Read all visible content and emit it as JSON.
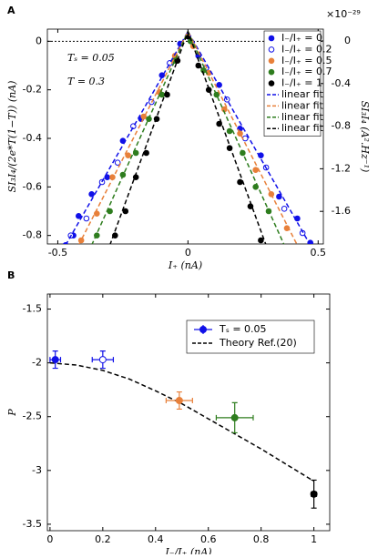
{
  "chart_data": [
    {
      "type": "scatter",
      "panel_label": "A",
      "x_label": "I₊ (nA)",
      "y_label": "SI₃I₄/(2e*T(1−T)) (nA)",
      "y2_label": "SI₃I₄ (A².Hz⁻¹)",
      "y2_exponent": "×10⁻²⁹",
      "annotations": [
        "Tₛ = 0.05",
        "T = 0.3"
      ],
      "xlim": [
        -0.54,
        0.52
      ],
      "xticks": [
        -0.5,
        0,
        0.5
      ],
      "ylim": [
        -0.835,
        0.05
      ],
      "yticks": [
        0,
        -0.2,
        -0.4,
        -0.6,
        -0.8
      ],
      "y2lim": [
        -1.906,
        0.111
      ],
      "y2ticks": [
        0,
        -0.4,
        -0.8,
        -1.2,
        -1.6
      ],
      "reference_line": 0,
      "legend": "upper right",
      "series": [
        {
          "name": "I₋/I₊ = 0",
          "color": "#1010e8",
          "kind": "points",
          "marker": "filled",
          "x": [
            -0.47,
            -0.44,
            -0.42,
            -0.37,
            -0.31,
            -0.25,
            -0.18,
            -0.1,
            -0.03,
            0.04,
            0.12,
            0.2,
            0.28,
            0.35,
            0.42,
            0.47
          ],
          "values": [
            -0.84,
            -0.8,
            -0.72,
            -0.63,
            -0.56,
            -0.41,
            -0.32,
            -0.14,
            -0.01,
            -0.06,
            -0.18,
            -0.36,
            -0.47,
            -0.64,
            -0.73,
            -0.83
          ]
        },
        {
          "name": "I₋/I₊ = 0.2",
          "color": "#1010e8",
          "kind": "points",
          "marker": "open",
          "x": [
            -0.45,
            -0.39,
            -0.33,
            -0.27,
            -0.21,
            -0.14,
            -0.07,
            0.0,
            0.07,
            0.15,
            0.22,
            0.3,
            0.37,
            0.44
          ],
          "values": [
            -0.8,
            -0.73,
            -0.58,
            -0.5,
            -0.35,
            -0.25,
            -0.09,
            0.02,
            -0.11,
            -0.24,
            -0.4,
            -0.52,
            -0.69,
            -0.79
          ]
        },
        {
          "name": "I₋/I₊ = 0.5",
          "color": "#e8803a",
          "kind": "points",
          "marker": "filled",
          "x": [
            -0.41,
            -0.35,
            -0.29,
            -0.23,
            -0.17,
            -0.11,
            -0.05,
            0.02,
            0.08,
            0.14,
            0.2,
            0.26,
            0.32,
            0.38
          ],
          "values": [
            -0.82,
            -0.71,
            -0.56,
            -0.47,
            -0.31,
            -0.21,
            -0.06,
            -0.02,
            -0.13,
            -0.28,
            -0.38,
            -0.53,
            -0.63,
            -0.77
          ]
        },
        {
          "name": "I₋/I₊ = 0.7",
          "color": "#2e7d1e",
          "kind": "points",
          "marker": "filled",
          "x": [
            -0.35,
            -0.3,
            -0.25,
            -0.2,
            -0.15,
            -0.1,
            -0.05,
            0.01,
            0.06,
            0.11,
            0.16,
            0.21,
            0.26,
            0.31
          ],
          "values": [
            -0.8,
            -0.7,
            -0.55,
            -0.46,
            -0.32,
            -0.22,
            -0.08,
            0.0,
            -0.12,
            -0.22,
            -0.37,
            -0.46,
            -0.6,
            -0.7
          ]
        },
        {
          "name": "I₋/I₊ = 1",
          "color": "#000000",
          "kind": "points",
          "marker": "filled",
          "x": [
            -0.28,
            -0.24,
            -0.2,
            -0.16,
            -0.12,
            -0.08,
            -0.04,
            0.0,
            0.04,
            0.08,
            0.12,
            0.16,
            0.2,
            0.24,
            0.28
          ],
          "values": [
            -0.8,
            -0.7,
            -0.56,
            -0.46,
            -0.32,
            -0.22,
            -0.08,
            0.02,
            -0.1,
            -0.2,
            -0.34,
            -0.44,
            -0.58,
            -0.68,
            -0.82
          ]
        },
        {
          "name": "linear fit",
          "color": "#1010e8",
          "kind": "line",
          "x": [
            -0.47,
            0,
            0.47
          ],
          "values": [
            -0.84,
            0.04,
            -0.84
          ]
        },
        {
          "name": "linear fit",
          "color": "#e8803a",
          "kind": "line",
          "x": [
            -0.42,
            0,
            0.42
          ],
          "values": [
            -0.84,
            0.04,
            -0.84
          ]
        },
        {
          "name": "linear fit",
          "color": "#2e7d1e",
          "kind": "line",
          "x": [
            -0.37,
            0,
            0.37
          ],
          "values": [
            -0.84,
            0.04,
            -0.84
          ]
        },
        {
          "name": "linear fit",
          "color": "#000000",
          "kind": "line",
          "x": [
            -0.3,
            0,
            0.3
          ],
          "values": [
            -0.84,
            0.04,
            -0.84
          ]
        }
      ]
    },
    {
      "type": "errorbar",
      "panel_label": "B",
      "x_label": "I₋/I₊ (nA)",
      "y_label": "P",
      "xlim": [
        -0.01,
        1.06
      ],
      "xticks": [
        0,
        0.2,
        0.4,
        0.6,
        0.8,
        1
      ],
      "ylim": [
        -3.56,
        -1.36
      ],
      "yticks": [
        -1.5,
        -2,
        -2.5,
        -3,
        -3.5
      ],
      "legend": "upper right",
      "series": [
        {
          "name": "Tₛ = 0.05",
          "kind": "points",
          "x": [
            0.02,
            0.2,
            0.49,
            0.7,
            1
          ],
          "values": [
            -1.97,
            -1.97,
            -2.35,
            -2.51,
            -3.22
          ],
          "xerr": [
            0.02,
            0.04,
            0.05,
            0.07,
            0.01
          ],
          "yerr": [
            0.08,
            0.08,
            0.08,
            0.14,
            0.13
          ],
          "colors": [
            "#1010e8",
            "#1010e8",
            "#e8803a",
            "#2e7d1e",
            "#000000"
          ],
          "markers": [
            "filled",
            "open",
            "filled",
            "filled",
            "filled"
          ]
        },
        {
          "name": "Theory Ref.(20)",
          "kind": "line",
          "color": "#000000",
          "x": [
            0,
            0.1,
            0.2,
            0.3,
            0.4,
            0.5,
            0.6,
            0.7,
            0.8,
            0.9,
            1
          ],
          "values": [
            -2.0,
            -2.02,
            -2.07,
            -2.15,
            -2.26,
            -2.38,
            -2.52,
            -2.66,
            -2.8,
            -2.95,
            -3.1
          ]
        }
      ]
    }
  ]
}
